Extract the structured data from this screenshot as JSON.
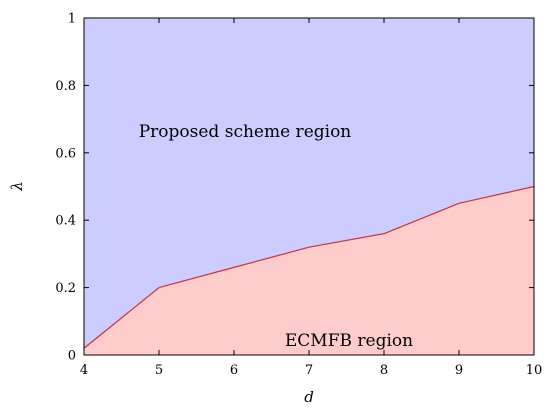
{
  "chart_data": {
    "type": "area",
    "xlabel": "d",
    "ylabel": "λ",
    "xlim": [
      4,
      10
    ],
    "ylim": [
      0,
      1
    ],
    "x_ticks": [
      "4",
      "5",
      "6",
      "7",
      "8",
      "9",
      "10"
    ],
    "y_ticks": [
      "0",
      "0.2",
      "0.4",
      "0.6",
      "0.8",
      "1"
    ],
    "boundary": {
      "x": [
        4,
        5,
        6,
        7,
        8,
        9,
        10
      ],
      "y": [
        0.02,
        0.2,
        0.26,
        0.32,
        0.36,
        0.45,
        0.5
      ]
    },
    "regions": {
      "upper": {
        "label": "Proposed scheme region",
        "color": "#ccccff"
      },
      "lower": {
        "label": "ECMFB region",
        "color": "#ffcccc"
      }
    },
    "boundary_color": "#cc3333",
    "grid": false,
    "legend": "none"
  }
}
